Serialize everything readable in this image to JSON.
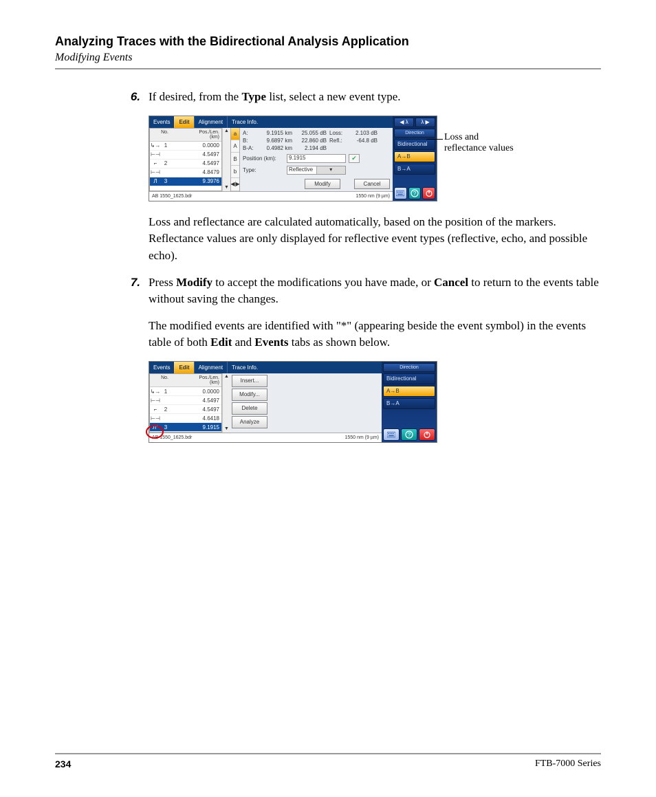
{
  "header": {
    "title": "Analyzing Traces with the Bidirectional Analysis Application",
    "subtitle": "Modifying Events"
  },
  "steps": {
    "s6": {
      "num": "6.",
      "pre": "If desired, from the ",
      "b1": "Type",
      "post": " list, select a new event type."
    },
    "p6": "Loss and reflectance are calculated automatically, based on the position of the markers. Reflectance values are only displayed for reflective event types (reflective, echo, and possible echo).",
    "s7": {
      "num": "7.",
      "pre": "Press ",
      "b1": "Modify",
      "mid": " to accept the modifications you have made, or ",
      "b2": "Cancel",
      "post": " to return to the events table without saving the changes."
    },
    "p7a": "The modified events are identified with \"*\" (appearing beside the event symbol) in the events table of both ",
    "p7b1": "Edit",
    "p7mid": " and ",
    "p7b2": "Events",
    "p7end": " tabs as shown below."
  },
  "callout": {
    "l1": "Loss and",
    "l2": "reflectance values"
  },
  "ui1": {
    "tabs": [
      "Events",
      "Edit",
      "Alignment",
      "Trace Info."
    ],
    "tbl_head": {
      "no": "No.",
      "pl": "Pos./Len.\n(km)"
    },
    "rows": [
      {
        "ic": "↳→",
        "no": "1",
        "pl": "0.0000"
      },
      {
        "ic": "⊢⊣",
        "no": "",
        "pl": "4.5497"
      },
      {
        "ic": "⌐",
        "no": "2",
        "pl": "4.5497"
      },
      {
        "ic": "⊢⊣",
        "no": "",
        "pl": "4.8479"
      },
      {
        "ic": "Л",
        "no": "3",
        "pl": "9.3976",
        "sel": true
      }
    ],
    "markers": [
      "a",
      "A",
      "B",
      "b"
    ],
    "detail": {
      "A": {
        "v1": "9.1915 km",
        "v2": "25.055 dB",
        "lbl": "Loss:",
        "v3": "2.103 dB"
      },
      "B": {
        "v1": "9.6897 km",
        "v2": "22.860 dB",
        "lbl": "Refl.:",
        "v3": "-64.8 dB"
      },
      "BA": {
        "lbl": "B-A:",
        "v1": "0.4982 km",
        "v2": "2.194 dB"
      }
    },
    "pos": {
      "lbl": "Position (km):",
      "val": "9.1915"
    },
    "type": {
      "lbl": "Type:",
      "val": "Reflective"
    },
    "btns": {
      "modify": "Modify",
      "cancel": "Cancel"
    },
    "side": {
      "lambda_l": "◀ λ",
      "lambda_r": "λ ▶",
      "dir": "Direction",
      "items": [
        "Bidirectional",
        "A→B",
        "B→A"
      ],
      "sel": 1
    },
    "status": {
      "file": "AB 1550_1625.bdr",
      "wl": "1550 nm (9 µm)"
    }
  },
  "ui2": {
    "tabs": [
      "Events",
      "Edit",
      "Alignment",
      "Trace Info."
    ],
    "tbl_head": {
      "no": "No.",
      "pl": "Pos./Len.\n(km)"
    },
    "rows": [
      {
        "ic": "↳→",
        "no": "1",
        "pl": "0.0000"
      },
      {
        "ic": "⊢⊣",
        "no": "",
        "pl": "4.5497"
      },
      {
        "ic": "⌐",
        "no": "2",
        "pl": "4.5497"
      },
      {
        "ic": "⊢⊣",
        "no": "",
        "pl": "4.6418"
      },
      {
        "ic": "Л*",
        "no": "3",
        "pl": "9.1915",
        "sel": true
      }
    ],
    "actions": [
      "Insert...",
      "Modify...",
      "Delete",
      "Analyze"
    ],
    "side": {
      "dir": "Direction",
      "items": [
        "Bidirectional",
        "A→B",
        "B→A"
      ],
      "sel": 1
    },
    "status": {
      "file": "AB 1550_1625.bdr",
      "wl": "1550 nm (9 µm)"
    }
  },
  "footer": {
    "page": "234",
    "series": "FTB-7000 Series"
  }
}
